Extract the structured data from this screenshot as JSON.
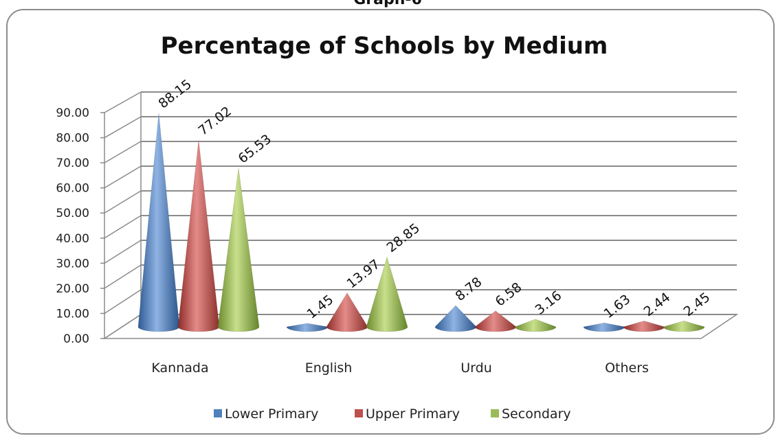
{
  "page_heading": "Graph-6",
  "chart_data": {
    "type": "bar",
    "title": "Percentage of Schools by Medium",
    "xlabel": "",
    "ylabel": "",
    "ylim": [
      0,
      90
    ],
    "yticks": [
      "0.00",
      "10.00",
      "20.00",
      "30.00",
      "40.00",
      "50.00",
      "60.00",
      "70.00",
      "80.00",
      "90.00"
    ],
    "categories": [
      "Kannada",
      "English",
      "Urdu",
      "Others"
    ],
    "series": [
      {
        "name": "Lower Primary",
        "color": "#4F81BD",
        "values": [
          88.15,
          1.45,
          8.78,
          1.63
        ]
      },
      {
        "name": "Upper Primary",
        "color": "#C0504D",
        "values": [
          77.02,
          13.97,
          6.58,
          2.44
        ]
      },
      {
        "name": "Secondary",
        "color": "#9BBB59",
        "values": [
          65.53,
          28.85,
          3.16,
          2.45
        ]
      }
    ],
    "grid": true,
    "legend": "bottom",
    "shape": "cone"
  }
}
